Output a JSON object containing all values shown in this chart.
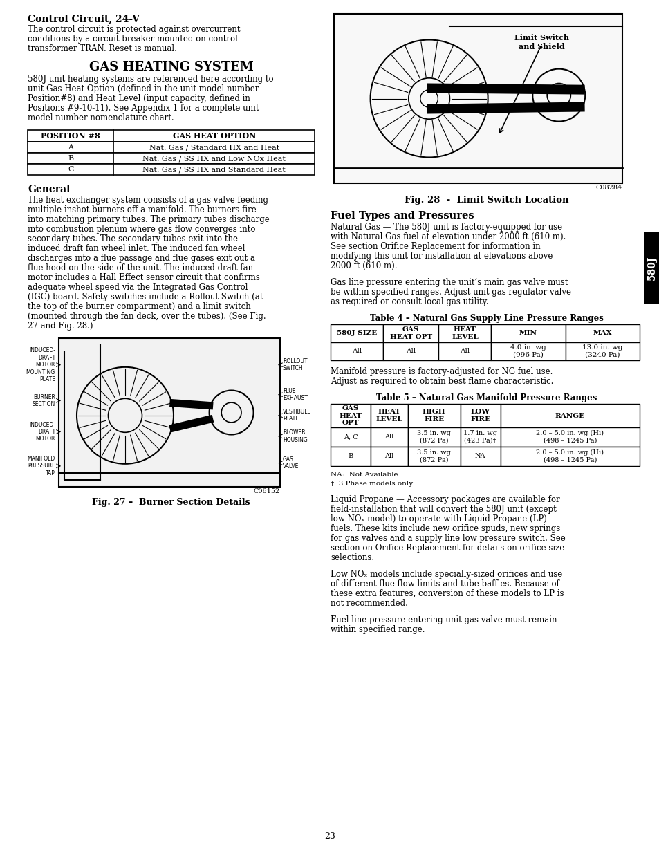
{
  "bg_color": "#ffffff",
  "page_num": "23",
  "sidebar_text": "580J",
  "fig27_code": "C06152",
  "fig28_code": "C08284",
  "fig27_caption": "Fig. 27 –  Burner Section Details",
  "fig28_caption": "Fig. 28  -  Limit Switch Location",
  "sec1_title": "Control Circuit, 24-V",
  "sec1_body": [
    "The control circuit is protected against overcurrent",
    "conditions by a circuit breaker mounted on control",
    "transformer TRAN. Reset is manual."
  ],
  "sec2_title": "GAS HEATING SYSTEM",
  "sec2_body": [
    "580J unit heating systems are referenced here according to",
    "unit Gas Heat Option (defined in the unit model number",
    "Position#8) and Heat Level (input capacity, defined in",
    "Positions #9‑10‑11). See Appendix 1 for a complete unit",
    "model number nomenclature chart."
  ],
  "table1_h1": "POSITION #8",
  "table1_h2": "GAS HEAT OPTION",
  "table1_rows": [
    [
      "A",
      "Nat. Gas / Standard HX and Heat"
    ],
    [
      "B",
      "Nat. Gas / SS HX and Low NOₓ Heat"
    ],
    [
      "C",
      "Nat. Gas / SS HX and Standard Heat"
    ]
  ],
  "sec3_title": "General",
  "sec3_body": [
    "The heat exchanger system consists of a gas valve feeding",
    "multiple inshot burners off a manifold. The burners fire",
    "into matching primary tubes. The primary tubes discharge",
    "into combustion plenum where gas flow converges into",
    "secondary tubes. The secondary tubes exit into the",
    "induced draft fan wheel inlet. The induced fan wheel",
    "discharges into a flue passage and flue gases exit out a",
    "flue hood on the side of the unit. The induced draft fan",
    "motor includes a Hall Effect sensor circuit that confirms",
    "adequate wheel speed via the Integrated Gas Control",
    "(IGC) board. Safety switches include a Rollout Switch (at",
    "the top of the burner compartment) and a limit switch",
    "(mounted through the fan deck, over the tubes). (See Fig.",
    "27 and Fig. 28.)"
  ],
  "fig27_left_labels": [
    "INDUCED-\nDRAFT\nMOTOR\nMOUNTING\nPLATE",
    "BURNER\nSECTION",
    "INDUCED-\nDRAFT\nMOTOR",
    "MANIFOLD\nPRESSURE\nTAP"
  ],
  "fig27_right_labels": [
    "ROLLOUT\nSWITCH",
    "FLUE\nEXHAUST",
    "VESTIBULE\nPLATE",
    "BLOWER\nHOUSING",
    "GAS\nVALVE"
  ],
  "sec4_title": "Fuel Types and Pressures",
  "sec4_body1": [
    "Natural Gas — The 580J unit is factory‑equipped for use",
    "with Natural Gas fuel at elevation under 2000 ft (610 m).",
    "See section Orifice Replacement for information in",
    "modifying this unit for installation at elevations above",
    "2000 ft (610 m)."
  ],
  "sec4_body2": [
    "Gas line pressure entering the unit’s main gas valve must",
    "be within specified ranges. Adjust unit gas regulator valve",
    "as required or consult local gas utility."
  ],
  "table4_title": "Table 4 – Natural Gas Supply Line Pressure Ranges",
  "table4_hdrs": [
    "580J SIZE",
    "GAS\nHEAT OPT",
    "HEAT\nLEVEL",
    "MIN",
    "MAX"
  ],
  "table4_row": [
    "All",
    "All",
    "All",
    "4.0 in. wg\n(996 Pa)",
    "13.0 in. wg\n(3240 Pa)"
  ],
  "sec4_body3": [
    "Manifold pressure is factory‑adjusted for NG fuel use.",
    "Adjust as required to obtain best flame characteristic."
  ],
  "table5_title": "Table 5 – Natural Gas Manifold Pressure Ranges",
  "table5_hdrs": [
    "GAS\nHEAT\nOPT",
    "HEAT\nLEVEL",
    "HIGH\nFIRE",
    "LOW\nFIRE",
    "RANGE"
  ],
  "table5_rows": [
    [
      "A, C",
      "All",
      "3.5 in. wg\n(872 Pa)",
      "1.7 in. wg\n(423 Pa)†",
      "2.0 – 5.0 in. wg (Hi)\n(498 – 1245 Pa)"
    ],
    [
      "B",
      "All",
      "3.5 in. wg\n(872 Pa)",
      "NA",
      "2.0 – 5.0 in. wg (Hi)\n(498 – 1245 Pa)"
    ]
  ],
  "table5_notes": [
    "NA:  Not Available",
    "†  3 Phase models only"
  ],
  "sec4_body4": [
    "Liquid Propane — Accessory packages are available for",
    "field‑installation that will convert the 580J unit (except",
    "low NOₓ model) to operate with Liquid Propane (LP)",
    "fuels. These kits include new orifice spuds, new springs",
    "for gas valves and a supply line low pressure switch. See",
    "section on Orifice Replacement for details on orifice size",
    "selections."
  ],
  "sec4_body5": [
    "Low NOₓ models include specially‑sized orifices and use",
    "of different flue flow limits and tube baffles. Because of",
    "these extra features, conversion of these models to LP is",
    "not recommended."
  ],
  "sec4_body6": [
    "Fuel line pressure entering unit gas valve must remain",
    "within specified range."
  ]
}
